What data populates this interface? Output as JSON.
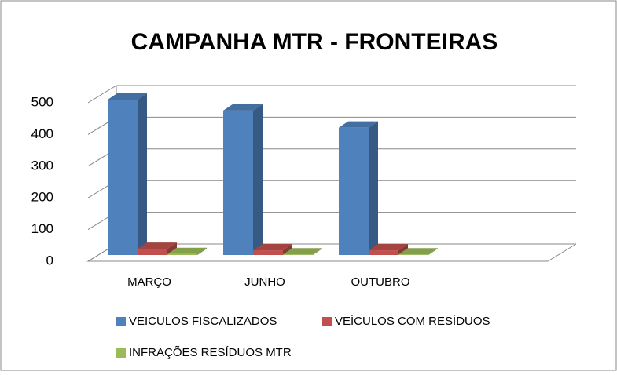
{
  "chart_data": {
    "type": "bar3d",
    "title": "CAMPANHA MTR - FRONTEIRAS",
    "categories": [
      "MARÇO",
      "JUNHO",
      "OUTUBRO"
    ],
    "series": [
      {
        "name": "VEICULOS FISCALIZADOS",
        "color": "#4f81bd",
        "values": [
          500,
          465,
          410
        ]
      },
      {
        "name": "VEÍCULOS COM RESÍDUOS",
        "color": "#c0504d",
        "values": [
          20,
          15,
          15
        ]
      },
      {
        "name": "INFRAÇÕES RESÍDUOS MTR",
        "color": "#9bbb59",
        "values": [
          3,
          2,
          2
        ]
      }
    ],
    "ylim": [
      0,
      500
    ],
    "yticks": [
      0,
      100,
      200,
      300,
      400,
      500
    ],
    "grid": true
  }
}
